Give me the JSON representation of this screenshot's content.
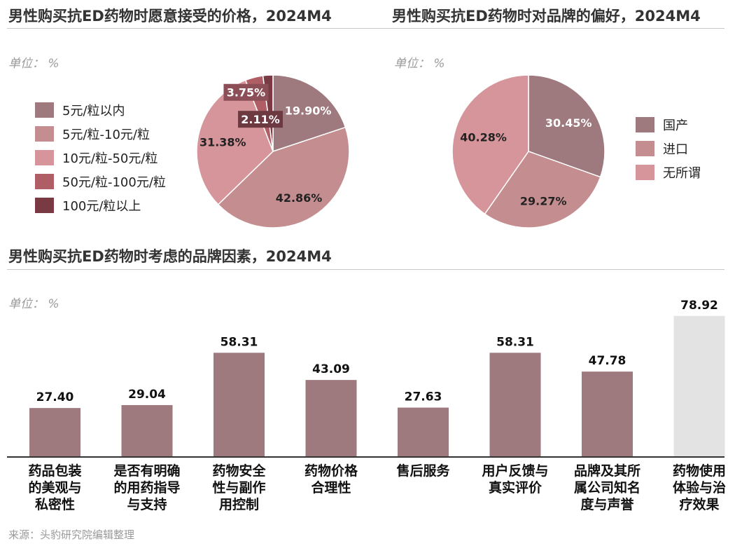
{
  "colors": {
    "pie1": [
      "#9e7a7e",
      "#c48e91",
      "#d6959a",
      "#b05e66",
      "#7a3a44"
    ],
    "pie2": [
      "#9e7a7e",
      "#c48e91",
      "#d6959a"
    ],
    "bar": "#9e7a7e",
    "bar_highlight": "#e3e3e3"
  },
  "chart_data": [
    {
      "type": "pie",
      "title": "男性购买抗ED药物时愿意接受的价格，2024M4",
      "unit": "单位： %",
      "categories": [
        "5元/粒以内",
        "5元/粒-10元/粒",
        "10元/粒-50元/粒",
        "50元/粒-100元/粒",
        "100元/粒以上"
      ],
      "values": [
        19.9,
        42.86,
        31.38,
        3.75,
        2.11
      ],
      "labels": [
        "19.90%",
        "42.86%",
        "31.38%",
        "3.75%",
        "2.11%"
      ],
      "legend_position": "left"
    },
    {
      "type": "pie",
      "title": "男性购买抗ED药物时对品牌的偏好，2024M4",
      "unit": "单位： %",
      "categories": [
        "国产",
        "进口",
        "无所谓"
      ],
      "values": [
        30.45,
        29.27,
        40.28
      ],
      "labels": [
        "30.45%",
        "29.27%",
        "40.28%"
      ],
      "legend_position": "right"
    },
    {
      "type": "bar",
      "title": "男性购买抗ED药物时考虑的品牌因素，2024M4",
      "unit": "单位： %",
      "categories": [
        [
          "药品包装",
          "的美观与",
          "私密性"
        ],
        [
          "是否有明确",
          "的用药指导",
          "与支持"
        ],
        [
          "药物安全",
          "性与副作",
          "用控制"
        ],
        [
          "药物价格",
          "合理性"
        ],
        [
          "售后服务"
        ],
        [
          "用户反馈与",
          "真实评价"
        ],
        [
          "品牌及其所",
          "属公司知名",
          "度与声誉"
        ],
        [
          "药物使用",
          "体验与治",
          "疗效果"
        ]
      ],
      "values": [
        27.4,
        29.04,
        58.31,
        43.09,
        27.63,
        58.31,
        47.78,
        78.92
      ],
      "labels": [
        "27.40",
        "29.04",
        "58.31",
        "43.09",
        "27.63",
        "58.31",
        "47.78",
        "78.92"
      ],
      "highlight_index": 7
    }
  ],
  "source": "来源：头豹研究院编辑整理"
}
